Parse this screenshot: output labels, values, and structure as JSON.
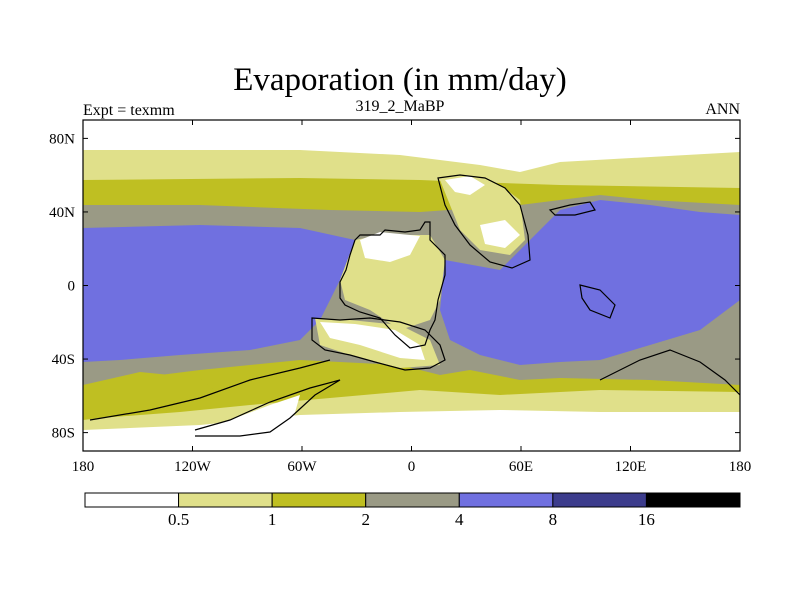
{
  "header": {
    "title": "Evaporation (in mm/day)",
    "left_label": "Expt = texmm",
    "center_label": "319_2_MaBP",
    "right_label": "ANN"
  },
  "chart_data": {
    "type": "heatmap",
    "title": "Evaporation (in mm/day)",
    "xlabel": "",
    "ylabel": "",
    "x_ticks": [
      {
        "value": -180,
        "label": "180"
      },
      {
        "value": -120,
        "label": "120W"
      },
      {
        "value": -60,
        "label": "60W"
      },
      {
        "value": 0,
        "label": "0"
      },
      {
        "value": 60,
        "label": "60E"
      },
      {
        "value": 120,
        "label": "120E"
      },
      {
        "value": 180,
        "label": "180"
      }
    ],
    "y_ticks": [
      {
        "value": 80,
        "label": "80N"
      },
      {
        "value": 40,
        "label": "40N"
      },
      {
        "value": 0,
        "label": "0"
      },
      {
        "value": -40,
        "label": "40S"
      },
      {
        "value": -80,
        "label": "80S"
      }
    ],
    "xlim": [
      -180,
      180
    ],
    "ylim": [
      -90,
      90
    ],
    "colorbar": {
      "levels": [
        "0.5",
        "1",
        "2",
        "4",
        "8",
        "16"
      ],
      "colors": [
        "#ffffff",
        "#e0e08a",
        "#bfbf22",
        "#9a9a85",
        "#7070e0",
        "#3c3c8c",
        "#000000"
      ]
    }
  }
}
